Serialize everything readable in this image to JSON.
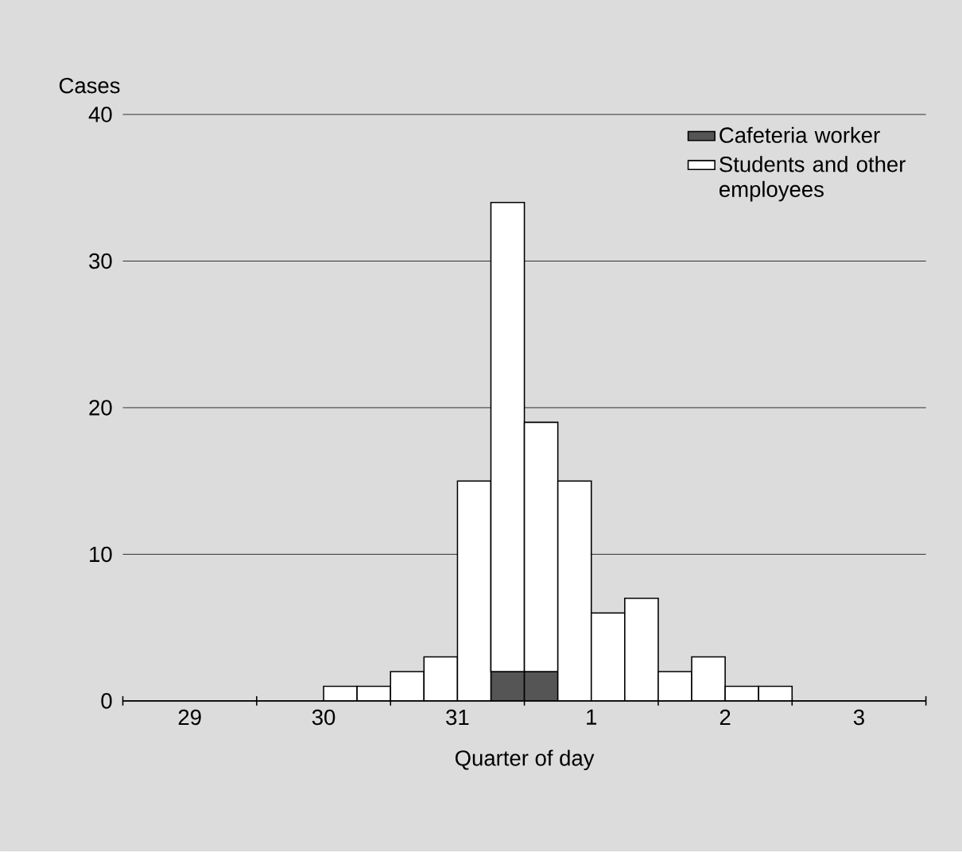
{
  "chart_data": {
    "type": "bar",
    "stacked": true,
    "xlabel": "Quarter of day",
    "ylabel": "Cases",
    "categories": [
      null,
      "29",
      null,
      null,
      null,
      "30",
      null,
      null,
      null,
      "31",
      null,
      null,
      null,
      "1",
      null,
      null,
      null,
      "2",
      null,
      null,
      null,
      "3",
      null,
      null
    ],
    "series": [
      {
        "name": "Cafeteria worker",
        "color": "#555555",
        "values": [
          null,
          null,
          null,
          null,
          null,
          null,
          null,
          null,
          null,
          null,
          null,
          2,
          2,
          null,
          null,
          null,
          null,
          null,
          null,
          null,
          null,
          null,
          null,
          null
        ]
      },
      {
        "name": "Students and other employees",
        "color": "#ffffff",
        "values": [
          null,
          null,
          null,
          null,
          null,
          null,
          1,
          1,
          2,
          3,
          15,
          32,
          17,
          15,
          6,
          7,
          2,
          3,
          1,
          1,
          null,
          null,
          null,
          null
        ]
      }
    ],
    "ylim": [
      0,
      40
    ],
    "yticks": [
      0,
      10,
      20,
      30,
      40
    ],
    "grid": "y",
    "legend": "top right"
  }
}
